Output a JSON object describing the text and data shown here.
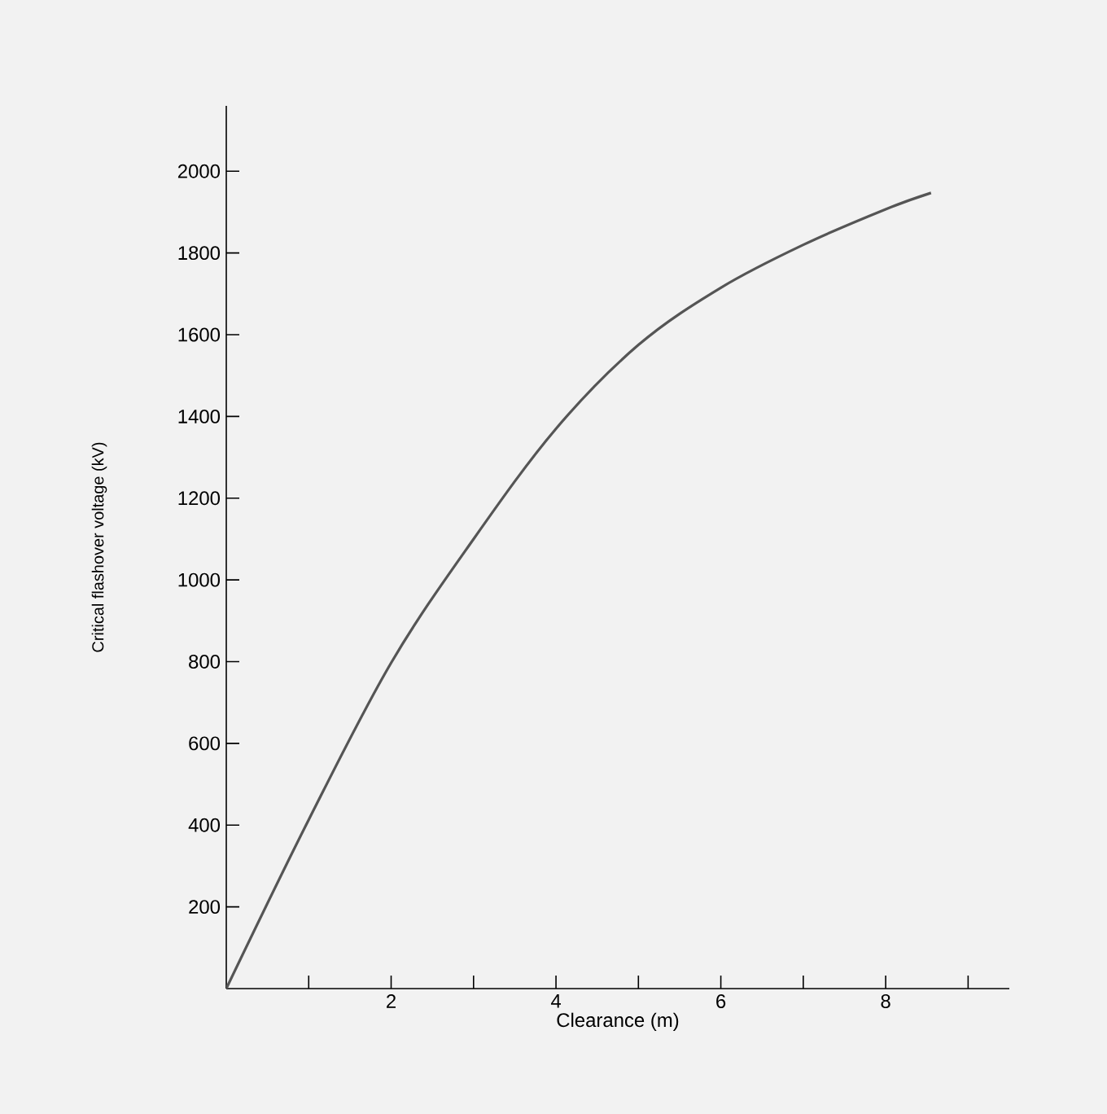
{
  "chart_data": {
    "type": "line",
    "xlabel": "Clearance (m)",
    "ylabel": "Critical flashover voltage (kV)",
    "x": [
      0,
      1,
      2,
      3,
      4,
      5,
      6,
      7,
      8,
      8.55
    ],
    "series": [
      {
        "color": "#555555",
        "values": [
          0,
          413,
          797,
          1100,
          1370,
          1575,
          1715,
          1820,
          1907,
          1947
        ]
      }
    ],
    "xlim": [
      0,
      9.5
    ],
    "ylim": [
      0,
      2160
    ],
    "xticks": [
      {
        "value": 1,
        "label": null
      },
      2,
      {
        "value": 3,
        "label": null
      },
      4,
      {
        "value": 5,
        "label": null
      },
      6,
      {
        "value": 7,
        "label": null
      },
      8,
      {
        "value": 9,
        "label": null
      }
    ],
    "yticks": [
      200,
      400,
      600,
      800,
      1000,
      1200,
      1400,
      1600,
      1800,
      2000
    ],
    "grid": false,
    "marker": "none",
    "line_style": "solid"
  }
}
